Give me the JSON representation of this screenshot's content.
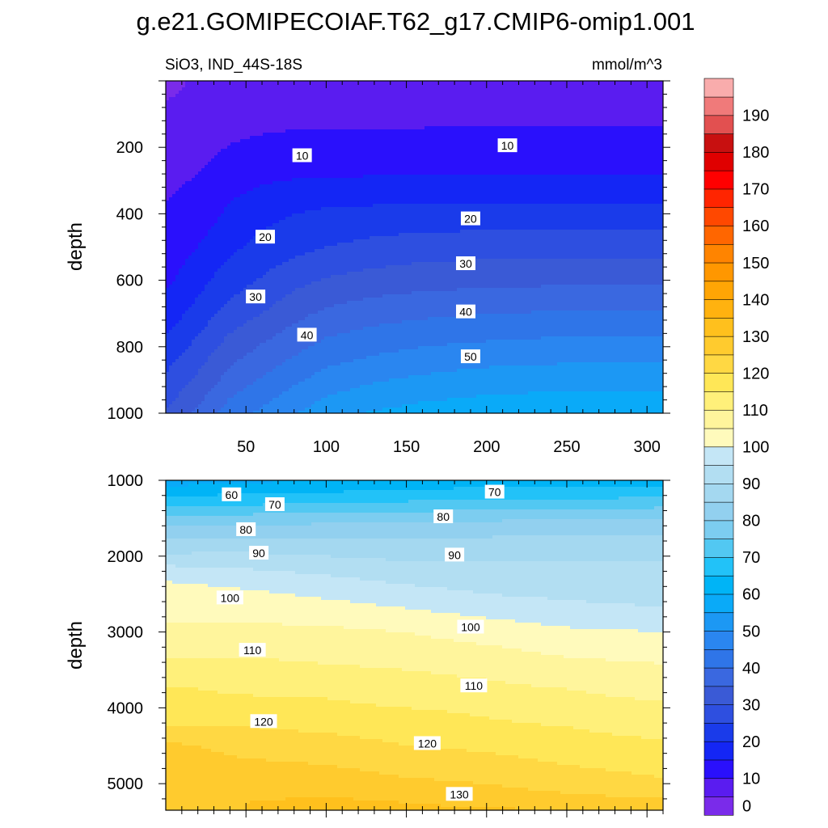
{
  "title": "g.e21.GOMIPECOIAF.T62_g17.CMIP6-omip1.001",
  "left_label": "SiO3, IND_44S-18S",
  "right_label": "mmol/m^3",
  "colorbar": {
    "levels": [
      0,
      5,
      10,
      15,
      20,
      25,
      30,
      35,
      40,
      45,
      50,
      55,
      60,
      65,
      70,
      75,
      80,
      85,
      90,
      95,
      100,
      105,
      110,
      115,
      120,
      125,
      130,
      135,
      140,
      145,
      150,
      155,
      160,
      165,
      170,
      175,
      180,
      185,
      190,
      195
    ],
    "colors": [
      "#7a2bea",
      "#5a1cf0",
      "#2a10fc",
      "#1426f5",
      "#1a3bea",
      "#2e4fe0",
      "#3a5ad6",
      "#3a68e0",
      "#2f75e8",
      "#2a86f0",
      "#1c98f4",
      "#0aaaf8",
      "#00b4f6",
      "#22c2f8",
      "#52c8f2",
      "#7ccdf0",
      "#92d0ef",
      "#a4d8f0",
      "#b2def2",
      "#c4e6f6",
      "#fffabc",
      "#fff59c",
      "#fff07a",
      "#ffe757",
      "#ffd843",
      "#ffcb2e",
      "#ffc01d",
      "#ffb20f",
      "#ffa505",
      "#ff9700",
      "#ff8400",
      "#ff6600",
      "#ff4800",
      "#ff2500",
      "#ff0000",
      "#e00000",
      "#c81010",
      "#e25050",
      "#f07a7a",
      "#f9acac"
    ],
    "tick_labels": [
      "0",
      "10",
      "20",
      "30",
      "40",
      "50",
      "60",
      "70",
      "80",
      "90",
      "100",
      "110",
      "120",
      "130",
      "140",
      "150",
      "160",
      "170",
      "180",
      "190"
    ]
  },
  "chart_data": [
    {
      "type": "heatmap",
      "panel": "upper",
      "ylabel": "depth",
      "xlim": [
        0,
        310
      ],
      "ylim": [
        1000,
        0
      ],
      "xticks": [
        50,
        100,
        150,
        200,
        250,
        300
      ],
      "yticks": [
        200,
        400,
        600,
        800,
        1000
      ],
      "x": [
        0,
        10,
        20,
        30,
        40,
        60,
        80,
        100,
        130,
        160,
        200,
        250,
        300,
        310
      ],
      "depth": [
        0,
        100,
        200,
        300,
        400,
        500,
        600,
        700,
        800,
        900,
        1000
      ],
      "values": [
        [
          3.5,
          4.5,
          6.0,
          7.0,
          7.5,
          7.8,
          8.0,
          8.1,
          8.3,
          8.4,
          8.5,
          8.5,
          8.6,
          8.6
        ],
        [
          6.0,
          6.2,
          6.6,
          7.4,
          8.0,
          8.5,
          8.9,
          9.1,
          9.2,
          9.3,
          9.4,
          9.4,
          9.5,
          9.5
        ],
        [
          7.5,
          7.9,
          8.5,
          9.3,
          10.2,
          11.0,
          11.2,
          11.2,
          11.1,
          11.0,
          11.0,
          11.0,
          11.0,
          11.0
        ],
        [
          9.0,
          9.7,
          10.4,
          11.5,
          13.0,
          14.5,
          15.2,
          15.5,
          15.6,
          15.8,
          15.8,
          15.8,
          15.9,
          16.0
        ],
        [
          10.5,
          11.5,
          12.5,
          14.0,
          16.0,
          18.5,
          20.0,
          21.0,
          21.5,
          21.8,
          22.0,
          22.0,
          22.0,
          22.0
        ],
        [
          12.0,
          13.5,
          15.0,
          17.0,
          19.0,
          21.5,
          23.5,
          25.0,
          26.5,
          27.5,
          28.0,
          28.0,
          28.0,
          28.0
        ],
        [
          14.0,
          16.0,
          18.0,
          20.5,
          22.5,
          25.5,
          28.5,
          30.5,
          32.0,
          33.0,
          33.5,
          34.0,
          34.0,
          34.0
        ],
        [
          17.0,
          19.5,
          22.0,
          24.5,
          27.0,
          30.0,
          33.5,
          36.0,
          38.0,
          39.0,
          40.0,
          40.5,
          40.5,
          40.5
        ],
        [
          21.5,
          24.0,
          26.5,
          29.5,
          32.0,
          35.5,
          38.5,
          41.5,
          43.5,
          45.0,
          46.0,
          47.0,
          47.0,
          47.0
        ],
        [
          26.0,
          28.5,
          31.0,
          34.0,
          37.0,
          40.5,
          44.0,
          47.0,
          49.5,
          51.0,
          52.5,
          53.0,
          53.0,
          53.0
        ],
        [
          30.5,
          33.0,
          36.0,
          39.0,
          42.5,
          46.0,
          49.5,
          53.0,
          55.5,
          57.0,
          58.0,
          59.0,
          59.0,
          59.0
        ]
      ],
      "contour_labels": [
        {
          "text": "10",
          "x": 85,
          "depth": 225
        },
        {
          "text": "10",
          "x": 213,
          "depth": 195
        },
        {
          "text": "20",
          "x": 62,
          "depth": 470
        },
        {
          "text": "20",
          "x": 190,
          "depth": 415
        },
        {
          "text": "30",
          "x": 56,
          "depth": 650
        },
        {
          "text": "30",
          "x": 187,
          "depth": 550
        },
        {
          "text": "40",
          "x": 88,
          "depth": 765
        },
        {
          "text": "40",
          "x": 187,
          "depth": 695
        },
        {
          "text": "50",
          "x": 190,
          "depth": 830
        }
      ]
    },
    {
      "type": "heatmap",
      "panel": "lower",
      "ylabel": "depth",
      "xlim": [
        0,
        310
      ],
      "ylim": [
        5350,
        1000
      ],
      "xticks": [
        50,
        100,
        150,
        200,
        250,
        300
      ],
      "yticks": [
        1000,
        2000,
        3000,
        4000,
        5000
      ],
      "x": [
        0,
        20,
        50,
        100,
        150,
        200,
        250,
        310
      ],
      "depth": [
        1000,
        1250,
        1500,
        1750,
        2000,
        2250,
        2500,
        2750,
        3000,
        3250,
        3500,
        3750,
        4000,
        4250,
        4500,
        4750,
        5000,
        5250,
        5350
      ],
      "values": [
        [
          57,
          58,
          59,
          60,
          61,
          62,
          62,
          62
        ],
        [
          66,
          67,
          67,
          68,
          69,
          70,
          70,
          71
        ],
        [
          77,
          77,
          77,
          78,
          78,
          79,
          80,
          80
        ],
        [
          84,
          85,
          85,
          85,
          85,
          85,
          86,
          86
        ],
        [
          91,
          91,
          91,
          90,
          89,
          89,
          89,
          89
        ],
        [
          99,
          98,
          97,
          95,
          93,
          92,
          92,
          92
        ],
        [
          102,
          102,
          101,
          99,
          97,
          95,
          94,
          93
        ],
        [
          104,
          104,
          104,
          103,
          101,
          99,
          97,
          96
        ],
        [
          106,
          106,
          106,
          106,
          105,
          103,
          101,
          100
        ],
        [
          109,
          109,
          109,
          108,
          107,
          106,
          104,
          103
        ],
        [
          112,
          112,
          112,
          111,
          110,
          109,
          107,
          106
        ],
        [
          115,
          115,
          114,
          114,
          112,
          111,
          110,
          108
        ],
        [
          117,
          117,
          117,
          116,
          115,
          114,
          112,
          111
        ],
        [
          120,
          120,
          120,
          119,
          118,
          116,
          115,
          113
        ],
        [
          126,
          125,
          123,
          122,
          120,
          119,
          117,
          116
        ],
        [
          127,
          127,
          126,
          125,
          123,
          122,
          120,
          118
        ],
        [
          128,
          128,
          128,
          128,
          126,
          125,
          123,
          121
        ],
        [
          129,
          129,
          130,
          131,
          130,
          128,
          127,
          126
        ],
        [
          129,
          129,
          130,
          132,
          132,
          131,
          130,
          129
        ]
      ],
      "contour_labels": [
        {
          "text": "60",
          "x": 41,
          "depth": 1190
        },
        {
          "text": "70",
          "x": 68,
          "depth": 1320
        },
        {
          "text": "70",
          "x": 205,
          "depth": 1155
        },
        {
          "text": "80",
          "x": 50,
          "depth": 1650
        },
        {
          "text": "80",
          "x": 173,
          "depth": 1480
        },
        {
          "text": "90",
          "x": 58,
          "depth": 1960
        },
        {
          "text": "90",
          "x": 180,
          "depth": 1985
        },
        {
          "text": "100",
          "x": 40,
          "depth": 2550
        },
        {
          "text": "100",
          "x": 190,
          "depth": 2935
        },
        {
          "text": "110",
          "x": 54,
          "depth": 3240
        },
        {
          "text": "110",
          "x": 192,
          "depth": 3710
        },
        {
          "text": "120",
          "x": 61,
          "depth": 4180
        },
        {
          "text": "120",
          "x": 163,
          "depth": 4470
        },
        {
          "text": "130",
          "x": 183,
          "depth": 5140
        }
      ]
    }
  ]
}
